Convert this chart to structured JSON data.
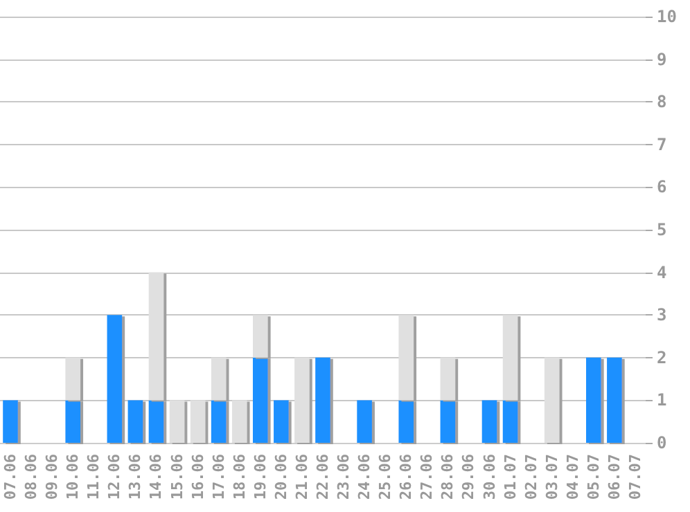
{
  "chart_data": {
    "type": "bar",
    "stacked": true,
    "categories": [
      "07.06",
      "08.06",
      "09.06",
      "10.06",
      "11.06",
      "12.06",
      "13.06",
      "14.06",
      "15.06",
      "16.06",
      "17.06",
      "18.06",
      "19.06",
      "20.06",
      "21.06",
      "22.06",
      "23.06",
      "24.06",
      "25.06",
      "26.06",
      "27.06",
      "28.06",
      "29.06",
      "30.06",
      "01.07",
      "02.07",
      "03.07",
      "04.07",
      "05.07",
      "06.07",
      "07.07"
    ],
    "series": [
      {
        "color": "#1e90ff",
        "values": [
          1,
          0,
          0,
          1,
          0,
          3,
          1,
          1,
          0,
          0,
          1,
          0,
          2,
          1,
          0,
          2,
          0,
          1,
          0,
          1,
          0,
          1,
          0,
          1,
          1,
          0,
          0,
          0,
          2,
          2,
          0
        ]
      },
      {
        "color": "#e0e0e0",
        "values": [
          0,
          0,
          0,
          1,
          0,
          0,
          0,
          3,
          1,
          1,
          1,
          1,
          1,
          0,
          2,
          0,
          0,
          0,
          0,
          2,
          0,
          1,
          0,
          0,
          2,
          0,
          2,
          0,
          0,
          0,
          0
        ]
      }
    ],
    "ylim": [
      0,
      10
    ],
    "yticks": [
      0,
      1,
      2,
      3,
      4,
      5,
      6,
      7,
      8,
      9,
      10
    ],
    "grid": "y"
  }
}
